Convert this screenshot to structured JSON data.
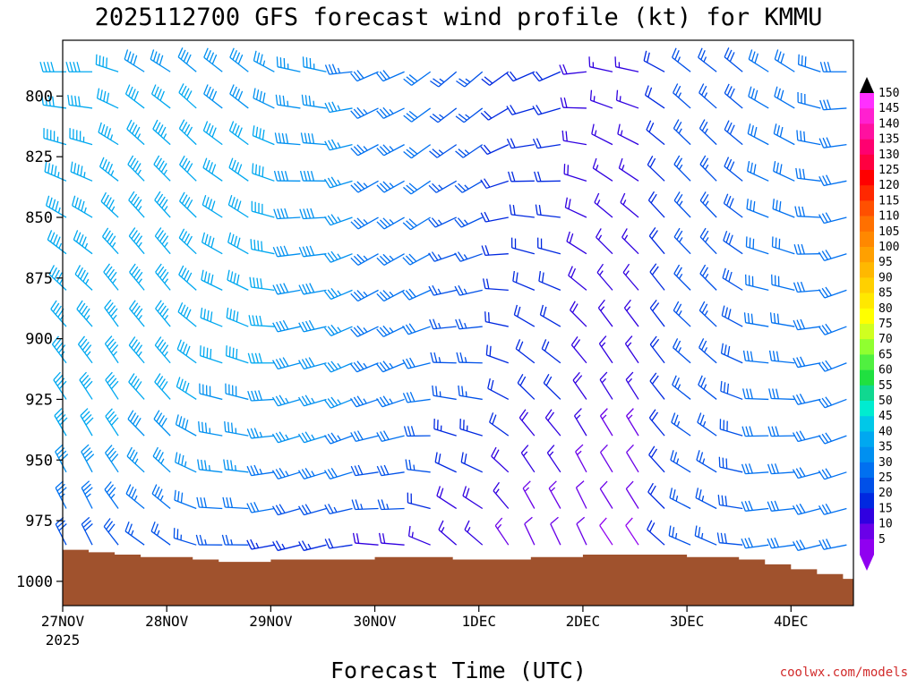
{
  "chart_data": {
    "type": "wind-barb profile (time-height)",
    "title": "2025112700 GFS forecast wind profile (kt) for KMMU",
    "xlabel": "Forecast Time (UTC)",
    "ylabel": "",
    "x_ticks": [
      "27NOV",
      "28NOV",
      "29NOV",
      "30NOV",
      "1DEC",
      "2DEC",
      "3DEC",
      "4DEC"
    ],
    "x_year_label": "2025",
    "x_range_days": [
      0,
      7.6
    ],
    "time_step_hours": 6,
    "y_ticks": [
      800,
      825,
      850,
      875,
      900,
      925,
      950,
      975,
      1000
    ],
    "y_range_hPa": [
      777,
      1010
    ],
    "barb_levels_hPa": [
      790,
      805,
      820,
      835,
      850,
      865,
      880,
      895,
      910,
      925,
      940,
      955,
      970,
      985,
      1000
    ],
    "colorbar": {
      "labels": [
        "150",
        "145",
        "140",
        "135",
        "130",
        "125",
        "120",
        "115",
        "110",
        "105",
        "100",
        "95",
        "90",
        "85",
        "80",
        "75",
        "70",
        "65",
        "60",
        "55",
        "50",
        "45",
        "40",
        "35",
        "30",
        "25",
        "20",
        "15",
        "10",
        "5"
      ],
      "colors": [
        "#ff30ff",
        "#ff20d0",
        "#ff10a0",
        "#ff0070",
        "#ff0040",
        "#ff0000",
        "#ff2800",
        "#ff5000",
        "#ff7000",
        "#ff8800",
        "#ffa000",
        "#ffb800",
        "#ffd000",
        "#ffe800",
        "#ffff00",
        "#d0ff20",
        "#90ff30",
        "#50f040",
        "#20e040",
        "#10d890",
        "#00ecd0",
        "#00c8e8",
        "#00a8f0",
        "#0090f0",
        "#0070f0",
        "#0050e8",
        "#0028e0",
        "#3000e0",
        "#6a00e8",
        "#9000f0"
      ]
    },
    "terrain_hPa": [
      987,
      988,
      989,
      990,
      990,
      991,
      992,
      992,
      991,
      991,
      991,
      991,
      990,
      990,
      990,
      991,
      991,
      991,
      990,
      990,
      989,
      989,
      989,
      989,
      990,
      990,
      991,
      993,
      995,
      997,
      999,
      1001,
      1002,
      1003,
      1004,
      1005,
      1006,
      1006,
      1007,
      1007,
      1007,
      1007,
      1007,
      1006,
      1005,
      1004,
      1003,
      1001,
      999,
      997,
      996,
      995,
      996,
      997,
      998,
      999,
      1000,
      1001,
      1003,
      1004,
      1005,
      1006,
      1006,
      1005,
      1005,
      1005,
      1005,
      1004,
      1003,
      1002,
      1000,
      998,
      995,
      991,
      987,
      983,
      979,
      977,
      977,
      977,
      979,
      981,
      983,
      985,
      987,
      990,
      992,
      994,
      996,
      998,
      999,
      1000,
      1001,
      1000,
      1000,
      1000,
      1000,
      999
    ],
    "wind_speed_kt": [
      [
        40,
        40,
        39,
        39,
        38,
        37,
        36,
        34,
        32,
        30,
        26,
        22,
        20,
        18,
        16,
        22,
        26,
        28,
        30,
        30,
        30
      ],
      [
        42,
        42,
        41,
        40,
        39,
        38,
        37,
        35,
        33,
        30,
        26,
        22,
        20,
        18,
        16,
        22,
        26,
        28,
        30,
        30,
        30
      ],
      [
        44,
        44,
        43,
        42,
        41,
        40,
        38,
        36,
        34,
        31,
        27,
        22,
        20,
        18,
        16,
        22,
        26,
        28,
        30,
        30,
        30
      ],
      [
        44,
        44,
        43,
        42,
        41,
        40,
        38,
        36,
        34,
        31,
        27,
        22,
        20,
        18,
        16,
        22,
        26,
        28,
        30,
        30,
        30
      ],
      [
        44,
        44,
        43,
        42,
        41,
        40,
        38,
        36,
        34,
        31,
        27,
        22,
        20,
        18,
        16,
        22,
        26,
        28,
        30,
        30,
        30
      ],
      [
        44,
        44,
        43,
        42,
        41,
        40,
        38,
        36,
        34,
        31,
        27,
        22,
        20,
        18,
        16,
        22,
        26,
        28,
        30,
        30,
        30
      ],
      [
        44,
        44,
        43,
        42,
        41,
        40,
        38,
        36,
        34,
        31,
        27,
        22,
        20,
        18,
        16,
        22,
        26,
        28,
        30,
        30,
        30
      ],
      [
        44,
        44,
        43,
        42,
        41,
        40,
        38,
        36,
        34,
        31,
        27,
        22,
        20,
        18,
        16,
        22,
        26,
        28,
        30,
        30,
        30
      ],
      [
        44,
        44,
        43,
        42,
        41,
        40,
        38,
        36,
        34,
        31,
        27,
        22,
        20,
        18,
        16,
        22,
        26,
        28,
        30,
        30,
        30
      ],
      [
        42,
        42,
        41,
        40,
        39,
        38,
        37,
        35,
        33,
        30,
        26,
        22,
        20,
        18,
        16,
        22,
        26,
        28,
        30,
        30,
        30
      ],
      [
        40,
        40,
        39,
        38,
        37,
        36,
        35,
        33,
        31,
        28,
        24,
        20,
        18,
        16,
        14,
        22,
        26,
        28,
        30,
        30,
        30
      ],
      [
        38,
        38,
        37,
        36,
        35,
        34,
        33,
        31,
        29,
        26,
        22,
        18,
        16,
        14,
        12,
        22,
        26,
        28,
        30,
        30,
        30
      ],
      [
        34,
        34,
        33,
        32,
        31,
        30,
        29,
        27,
        25,
        22,
        19,
        16,
        14,
        12,
        10,
        22,
        26,
        28,
        30,
        30,
        30
      ],
      [
        28,
        28,
        27,
        26,
        25,
        24,
        23,
        21,
        19,
        17,
        15,
        13,
        11,
        10,
        9,
        22,
        26,
        28,
        30,
        30,
        30
      ],
      [
        22,
        22,
        21,
        20,
        19,
        18,
        17,
        15,
        13,
        11,
        10,
        9,
        8,
        7,
        6,
        22,
        26,
        28,
        30,
        30,
        30
      ]
    ]
  },
  "credit": "coolwx.com/models"
}
